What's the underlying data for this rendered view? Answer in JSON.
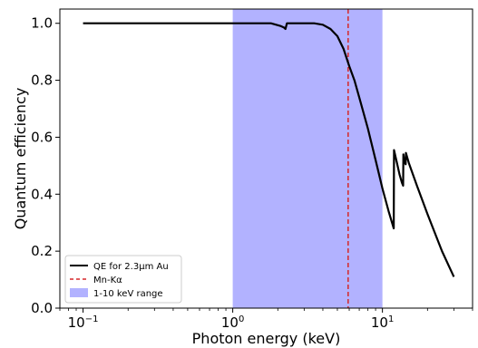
{
  "chart_data": {
    "type": "line",
    "xscale": "log",
    "xlabel": "Photon energy (keV)",
    "ylabel": "Quantum efficiency",
    "xlim": [
      0.07,
      40
    ],
    "ylim": [
      0,
      1.05
    ],
    "x_tick_labels": [
      {
        "value": 0.1,
        "base": "10",
        "exp": "−1"
      },
      {
        "value": 1,
        "base": "10",
        "exp": "0"
      },
      {
        "value": 10,
        "base": "10",
        "exp": "1"
      }
    ],
    "y_ticks": [
      0.0,
      0.2,
      0.4,
      0.6,
      0.8,
      1.0
    ],
    "y_tick_labels": [
      "0.0",
      "0.2",
      "0.4",
      "0.6",
      "0.8",
      "1.0"
    ],
    "grid": false,
    "legend_position": "lower-left",
    "series": [
      {
        "name": "QE for 2.3μm Au",
        "kind": "line",
        "color": "#000000",
        "x": [
          0.1,
          0.3,
          1.0,
          1.8,
          2.1,
          2.2,
          2.25,
          2.3,
          2.35,
          2.5,
          3.0,
          3.5,
          4.0,
          4.5,
          5.0,
          5.5,
          6.0,
          6.5,
          7.0,
          8.0,
          9.0,
          10.0,
          11.0,
          11.9,
          11.95,
          12.5,
          13.0,
          13.5,
          13.75,
          13.8,
          14.0,
          14.3,
          14.35,
          15.0,
          17.0,
          20.0,
          25.0,
          30.0
        ],
        "y": [
          1.0,
          1.0,
          1.0,
          1.0,
          0.99,
          0.985,
          0.98,
          1.0,
          1.0,
          1.0,
          1.0,
          1.0,
          0.995,
          0.98,
          0.955,
          0.91,
          0.85,
          0.8,
          0.74,
          0.63,
          0.52,
          0.42,
          0.34,
          0.28,
          0.555,
          0.51,
          0.47,
          0.44,
          0.43,
          0.54,
          0.515,
          0.505,
          0.545,
          0.51,
          0.43,
          0.33,
          0.2,
          0.11
        ]
      },
      {
        "name": "Mn-Kα",
        "kind": "vline",
        "color": "#d62728",
        "x": 5.9
      },
      {
        "name": "1-10 keV range",
        "kind": "span",
        "color": "#0000ff",
        "opacity": 0.3,
        "x_range": [
          1,
          10
        ]
      }
    ]
  }
}
